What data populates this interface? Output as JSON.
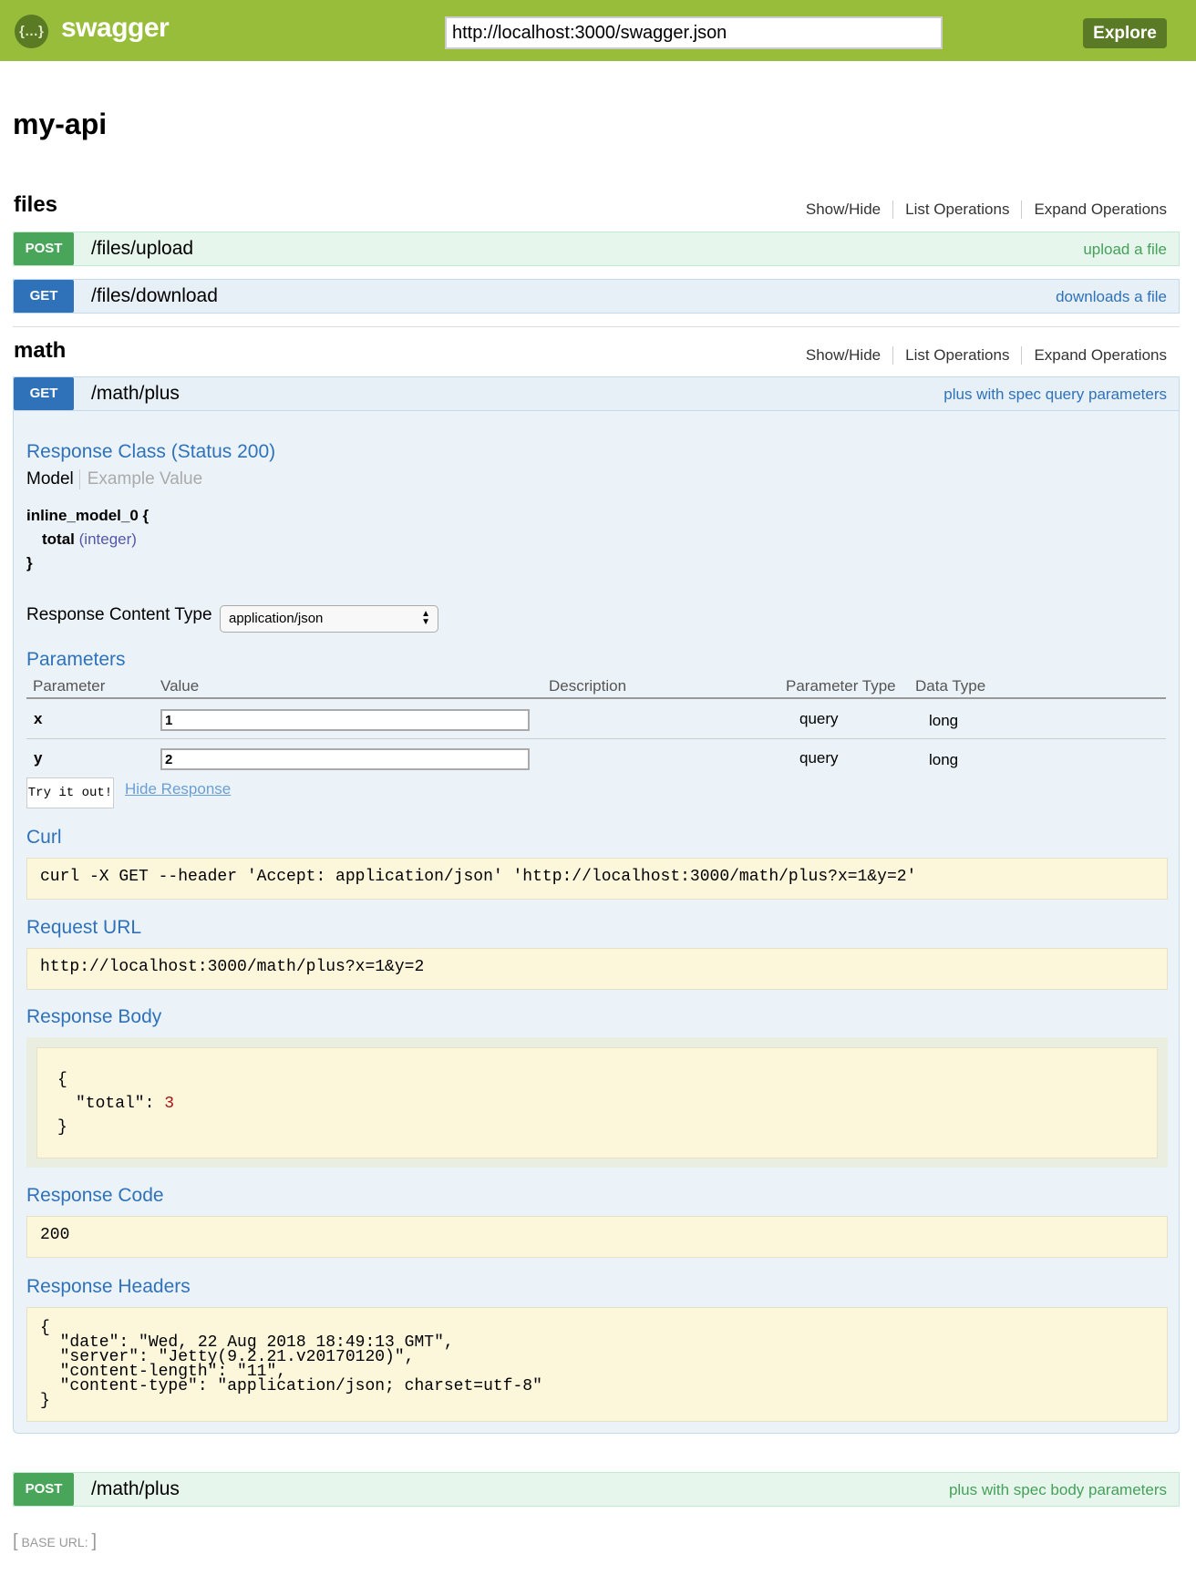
{
  "header": {
    "logo_icon": "swagger-braces-icon",
    "logo_glyph": "{…}",
    "brand": "swagger",
    "url_value": "http://localhost:3000/swagger.json",
    "explore_label": "Explore"
  },
  "api_title": "my-api",
  "links": {
    "show_hide": "Show/Hide",
    "list": "List Operations",
    "expand": "Expand Operations"
  },
  "resources": [
    {
      "name": "files",
      "operations": [
        {
          "method": "POST",
          "path": "/files/upload",
          "summary": "upload a file"
        },
        {
          "method": "GET",
          "path": "/files/download",
          "summary": "downloads a file"
        }
      ]
    },
    {
      "name": "math",
      "operations": [
        {
          "method": "GET",
          "path": "/math/plus",
          "summary": "plus with spec query parameters"
        },
        {
          "method": "POST",
          "path": "/math/plus",
          "summary": "plus with spec body parameters"
        }
      ]
    }
  ],
  "expanded": {
    "response_class": "Response Class (Status 200)",
    "model_tab": "Model",
    "example_tab": "Example Value",
    "model_name": "inline_model_0 {",
    "model_field": "total",
    "model_type": "(integer)",
    "model_close": "}",
    "content_type_label": "Response Content Type",
    "content_type_value": "application/json",
    "parameters_title": "Parameters",
    "param_headers": [
      "Parameter",
      "Value",
      "Description",
      "Parameter Type",
      "Data Type"
    ],
    "params": [
      {
        "name": "x",
        "value": "1",
        "param_type": "query",
        "data_type": "long"
      },
      {
        "name": "y",
        "value": "2",
        "param_type": "query",
        "data_type": "long"
      }
    ],
    "try_label": "Try it out!",
    "hide_label": "Hide Response",
    "curl_title": "Curl",
    "curl": "curl -X GET --header 'Accept: application/json' 'http://localhost:3000/math/plus?x=1&y=2'",
    "request_url_title": "Request URL",
    "request_url": "http://localhost:3000/math/plus?x=1&y=2",
    "response_body_title": "Response Body",
    "body_open": "{",
    "body_key": "\"total\": ",
    "body_value": "3",
    "body_close": "}",
    "response_code_title": "Response Code",
    "response_code": "200",
    "response_headers_title": "Response Headers",
    "response_headers": "{\n  \"date\": \"Wed, 22 Aug 2018 18:49:13 GMT\",\n  \"server\": \"Jetty(9.2.21.v20170120)\",\n  \"content-length\": \"11\",\n  \"content-type\": \"application/json; charset=utf-8\"\n}"
  },
  "base_url": {
    "open": "[",
    "label": "BASE URL",
    "colon": ":",
    "close": "]"
  }
}
